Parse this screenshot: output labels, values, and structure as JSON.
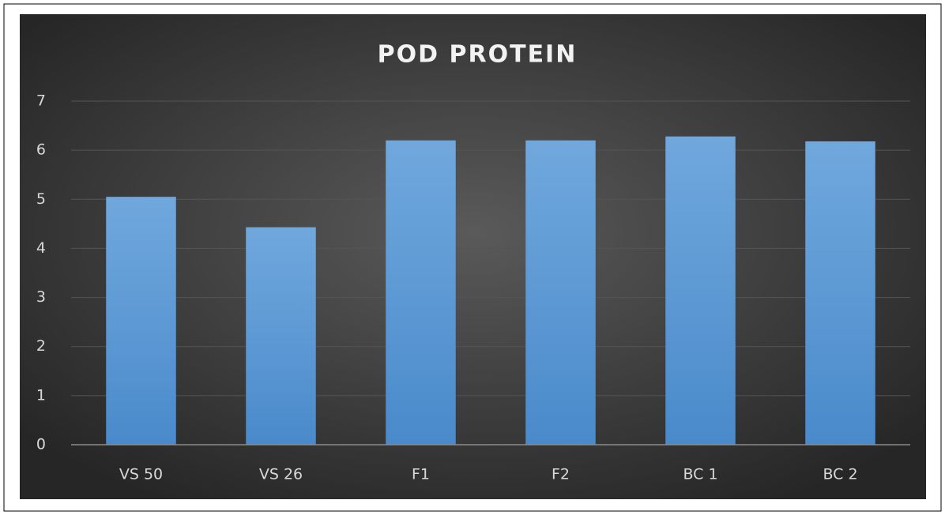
{
  "chart_data": {
    "type": "bar",
    "title": "POD PROTEIN",
    "categories": [
      "VS 50",
      "VS 26",
      "F1",
      "F2",
      "BC 1",
      "BC 2"
    ],
    "values": [
      5.05,
      4.43,
      6.2,
      6.2,
      6.28,
      6.18
    ],
    "color": "#5b9bd5",
    "ylim": [
      0,
      7
    ],
    "yticks": [
      0,
      1,
      2,
      3,
      4,
      5,
      6,
      7
    ],
    "grid": true
  }
}
